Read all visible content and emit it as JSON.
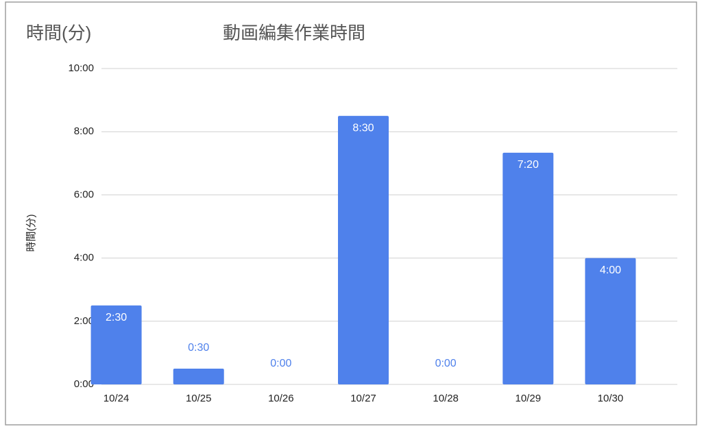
{
  "chart_data": {
    "type": "bar",
    "title": "動画編集作業時間",
    "subtitle": "時間(分)",
    "y_label": "時間(分)",
    "categories": [
      "10/24",
      "10/25",
      "10/26",
      "10/27",
      "10/28",
      "10/29",
      "10/30"
    ],
    "values": [
      2.5,
      0.5,
      0,
      8.5,
      0,
      7.333333,
      4
    ],
    "value_labels": [
      "2:30",
      "0:30",
      "0:00",
      "8:30",
      "0:00",
      "7:20",
      "4:00"
    ],
    "color": "#4f81eb",
    "ylim": [
      0,
      10
    ],
    "yticks": [
      {
        "value": 0,
        "label": "0:00"
      },
      {
        "value": 2,
        "label": "2:00"
      },
      {
        "value": 4,
        "label": "4:00"
      },
      {
        "value": 6,
        "label": "6:00"
      },
      {
        "value": 8,
        "label": "8:00"
      },
      {
        "value": 10,
        "label": "10:00"
      }
    ],
    "grid": true
  }
}
